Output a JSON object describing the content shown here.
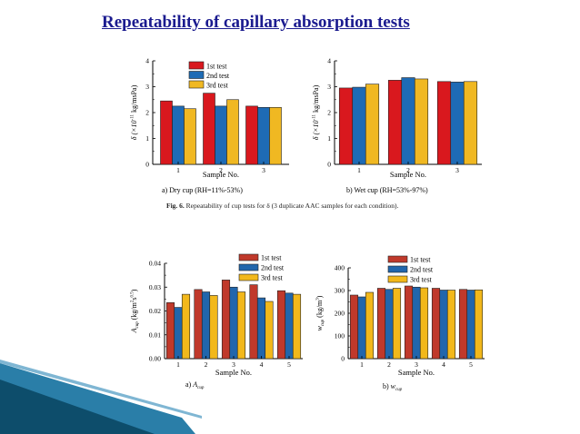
{
  "slide": {
    "title": "Repeatability of capillary absorption tests",
    "figure_caption_label": "Fig. 6.",
    "figure_caption_text": "Repeatability of cup tests for δ (3 duplicate AAC samples for each condition)."
  },
  "colors": {
    "title": "#1b1b8f",
    "series": [
      "#d9181e",
      "#1e6bb5",
      "#f0b822"
    ],
    "series_bottom": [
      "#c0392b",
      "#2166ac",
      "#f2b81b"
    ],
    "decor_dark": "#0d4d6b",
    "decor_light": "#2a7ea8"
  },
  "chart_data": [
    {
      "id": "a",
      "type": "bar",
      "categories": [
        "1",
        "2",
        "3"
      ],
      "series": [
        {
          "name": "1st test",
          "values": [
            2.45,
            2.75,
            2.25
          ]
        },
        {
          "name": "2nd test",
          "values": [
            2.25,
            2.25,
            2.2
          ]
        },
        {
          "name": "3rd test",
          "values": [
            2.15,
            2.5,
            2.2
          ]
        }
      ],
      "xlabel": "Sample No.",
      "ylabel_main": "δ (×10",
      "ylabel_sup": "-11",
      "ylabel_tail": " kg/msPa)",
      "yticks": [
        "0",
        "1",
        "2",
        "3",
        "4"
      ],
      "ylim": [
        0,
        4
      ],
      "legend": "top-center",
      "caption": "a) Dry cup (RH=11%-53%)"
    },
    {
      "id": "b",
      "type": "bar",
      "categories": [
        "1",
        "2",
        "3"
      ],
      "series": [
        {
          "name": "",
          "values": [
            2.95,
            3.25,
            3.2
          ]
        },
        {
          "name": "",
          "values": [
            2.98,
            3.35,
            3.18
          ]
        },
        {
          "name": "",
          "values": [
            3.1,
            3.3,
            3.2
          ]
        }
      ],
      "xlabel": "Sample No.",
      "ylabel_main": "δ (×10",
      "ylabel_sup": "-11",
      "ylabel_tail": " kg/msPa)",
      "yticks": [
        "0",
        "1",
        "2",
        "3",
        "4"
      ],
      "ylim": [
        0,
        4
      ],
      "legend": "none",
      "caption": "b) Wet cup (RH=53%-97%)"
    },
    {
      "id": "c",
      "type": "bar",
      "categories": [
        "1",
        "2",
        "3",
        "4",
        "5"
      ],
      "series": [
        {
          "name": "1st test",
          "values": [
            0.0235,
            0.029,
            0.033,
            0.031,
            0.0285
          ]
        },
        {
          "name": "2nd test",
          "values": [
            0.0215,
            0.028,
            0.03,
            0.0255,
            0.0275
          ]
        },
        {
          "name": "3rd test",
          "values": [
            0.027,
            0.0265,
            0.028,
            0.024,
            0.027
          ]
        }
      ],
      "xlabel": "Sample No.",
      "ylabel_main": "A",
      "ylabel_sub": "cup",
      "ylabel_tail": " (kg/m",
      "ylabel_sup": "2",
      "ylabel_tail2": "s",
      "ylabel_sup2": "0.5",
      "ylabel_end": ")",
      "yticks": [
        "0.00",
        "0.01",
        "0.02",
        "0.03",
        "0.04"
      ],
      "ylim": [
        0,
        0.04
      ],
      "legend": "top-right",
      "caption_prefix": "a)",
      "caption_main": "A",
      "caption_sub": "cup"
    },
    {
      "id": "d",
      "type": "bar",
      "categories": [
        "1",
        "2",
        "3",
        "4",
        "5"
      ],
      "series": [
        {
          "name": "1st test",
          "values": [
            280,
            310,
            320,
            310,
            305
          ]
        },
        {
          "name": "2nd test",
          "values": [
            272,
            305,
            315,
            302,
            302
          ]
        },
        {
          "name": "3rd test",
          "values": [
            292,
            310,
            312,
            302,
            303
          ]
        }
      ],
      "xlabel": "Sample No.",
      "ylabel_main": "w",
      "ylabel_sub": "cup",
      "ylabel_tail": " (kg/m",
      "ylabel_sup": "3",
      "ylabel_end": ")",
      "yticks": [
        "0",
        "100",
        "200",
        "300",
        "400"
      ],
      "ylim": [
        0,
        400
      ],
      "legend": "top-right",
      "caption_prefix": "b)",
      "caption_main": "w",
      "caption_sub": "cup"
    }
  ]
}
